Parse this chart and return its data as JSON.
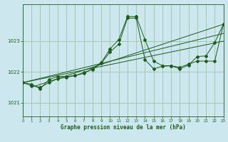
{
  "title": "Graphe pression niveau de la mer (hPa)",
  "bg_color": "#cce8ee",
  "grid_color": "#99bb99",
  "line_color": "#1a5c1a",
  "x_min": 0,
  "x_max": 23,
  "y_min": 1020.55,
  "y_max": 1024.2,
  "yticks": [
    1021,
    1022,
    1023
  ],
  "xticks": [
    0,
    1,
    2,
    3,
    4,
    5,
    6,
    7,
    8,
    9,
    10,
    11,
    12,
    13,
    14,
    15,
    16,
    17,
    18,
    19,
    20,
    21,
    22,
    23
  ],
  "series1": {
    "x": [
      0,
      1,
      2,
      3,
      4,
      5,
      6,
      7,
      8,
      9,
      10,
      11,
      12,
      13,
      14,
      15,
      16,
      17,
      18,
      19,
      20,
      21,
      22,
      23
    ],
    "y": [
      1021.65,
      1021.6,
      1021.45,
      1021.75,
      1021.85,
      1021.85,
      1021.88,
      1021.95,
      1022.1,
      1022.3,
      1022.75,
      1023.05,
      1023.8,
      1023.8,
      1023.05,
      1022.35,
      1022.2,
      1022.2,
      1022.15,
      1022.25,
      1022.35,
      1022.35,
      1022.35,
      1023.55
    ]
  },
  "series2": {
    "x": [
      0,
      1,
      2,
      3,
      4,
      5,
      6,
      7,
      8,
      9,
      10,
      11,
      12,
      13,
      14,
      15,
      16,
      17,
      18,
      19,
      20,
      21,
      22,
      23
    ],
    "y": [
      1021.65,
      1021.55,
      1021.5,
      1021.65,
      1021.78,
      1021.82,
      1021.88,
      1021.98,
      1022.08,
      1022.28,
      1022.65,
      1022.9,
      1023.75,
      1023.75,
      1022.4,
      1022.1,
      1022.18,
      1022.2,
      1022.1,
      1022.22,
      1022.5,
      1022.52,
      1022.95,
      1023.55
    ]
  },
  "line1": {
    "x": [
      0,
      23
    ],
    "y": [
      1021.65,
      1023.25
    ]
  },
  "line2": {
    "x": [
      0,
      23
    ],
    "y": [
      1021.65,
      1023.0
    ]
  },
  "line3": {
    "x": [
      1,
      23
    ],
    "y": [
      1021.5,
      1023.55
    ]
  }
}
